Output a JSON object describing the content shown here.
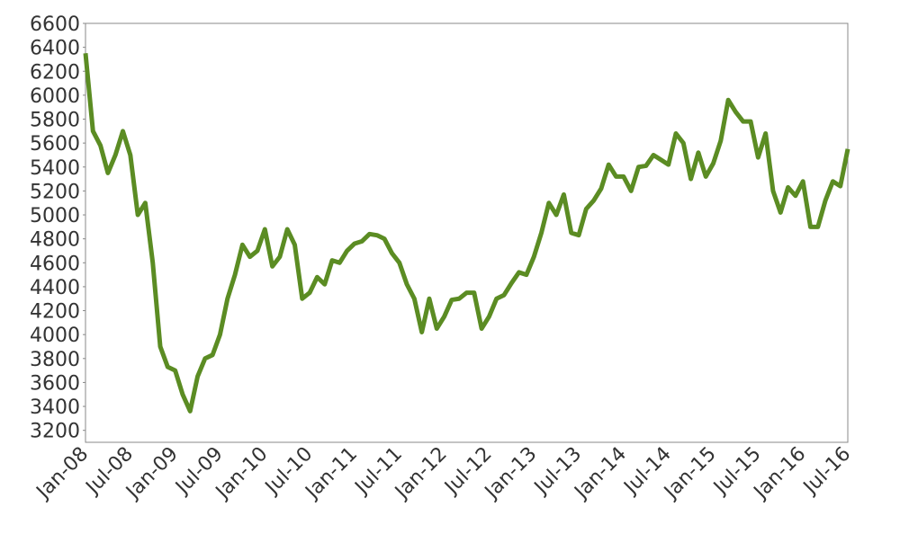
{
  "chart_data": {
    "type": "line",
    "categories": [
      "Jan-08",
      null,
      null,
      null,
      null,
      null,
      "Jul-08",
      null,
      null,
      null,
      null,
      null,
      "Jan-09",
      null,
      null,
      null,
      null,
      null,
      "Jul-09",
      null,
      null,
      null,
      null,
      null,
      "Jan-10",
      null,
      null,
      null,
      null,
      null,
      "Jul-10",
      null,
      null,
      null,
      null,
      null,
      "Jan-11",
      null,
      null,
      null,
      null,
      null,
      "Jul-11",
      null,
      null,
      null,
      null,
      null,
      "Jan-12",
      null,
      null,
      null,
      null,
      null,
      "Jul-12",
      null,
      null,
      null,
      null,
      null,
      "Jan-13",
      null,
      null,
      null,
      null,
      null,
      "Jul-13",
      null,
      null,
      null,
      null,
      null,
      "Jan-14",
      null,
      null,
      null,
      null,
      null,
      "Jul-14",
      null,
      null,
      null,
      null,
      null,
      "Jan-15",
      null,
      null,
      null,
      null,
      null,
      "Jul-15",
      null,
      null,
      null,
      null,
      null,
      "Jan-16",
      null,
      null,
      null,
      null,
      null,
      "Jul-16"
    ],
    "series": [
      {
        "color": "#5b8c23",
        "values": [
          6350,
          5700,
          5580,
          5350,
          5500,
          5700,
          5500,
          5000,
          5100,
          4600,
          3900,
          3730,
          3700,
          3500,
          3360,
          3650,
          3800,
          3830,
          4000,
          4300,
          4500,
          4750,
          4650,
          4700,
          4880,
          4570,
          4650,
          4880,
          4750,
          4300,
          4350,
          4480,
          4420,
          4620,
          4600,
          4700,
          4760,
          4780,
          4840,
          4830,
          4800,
          4680,
          4600,
          4420,
          4300,
          4020,
          4300,
          4050,
          4150,
          4290,
          4300,
          4350,
          4350,
          4050,
          4150,
          4300,
          4330,
          4430,
          4520,
          4500,
          4650,
          4850,
          5100,
          5000,
          5170,
          4850,
          4830,
          5050,
          5120,
          5220,
          5420,
          5320,
          5320,
          5200,
          5400,
          5410,
          5500,
          5460,
          5420,
          5680,
          5600,
          5300,
          5520,
          5320,
          5430,
          5620,
          5960,
          5860,
          5780,
          5780,
          5480,
          5680,
          5200,
          5020,
          5230,
          5160,
          5280,
          4900,
          4900,
          5120,
          5280,
          5240,
          5550
        ]
      }
    ],
    "ylim": [
      3100,
      6600
    ],
    "yticks": [
      3200,
      3400,
      3600,
      3800,
      4000,
      4200,
      4400,
      4600,
      4800,
      5000,
      5200,
      5400,
      5600,
      5800,
      6000,
      6200,
      6400,
      6600
    ],
    "grid": false
  }
}
